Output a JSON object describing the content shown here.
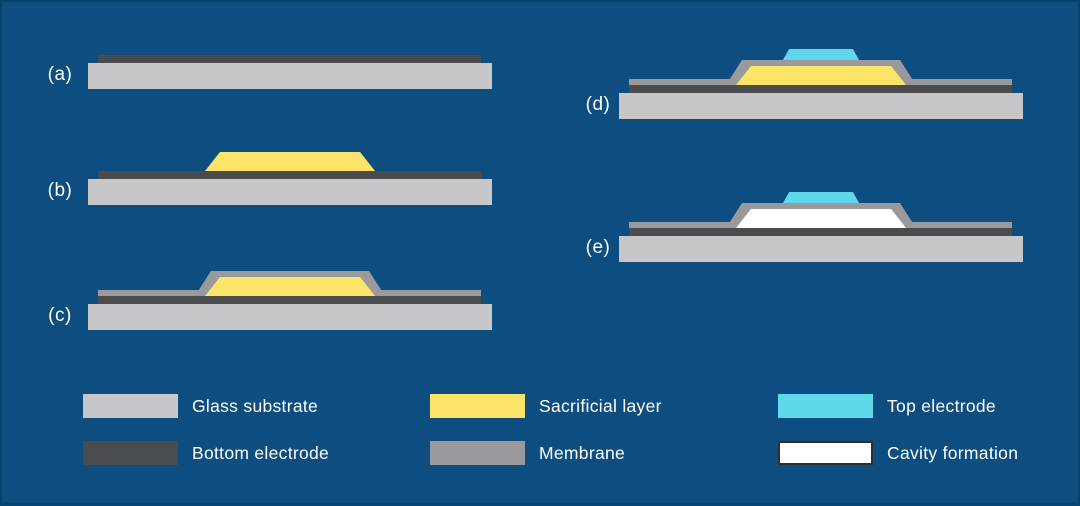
{
  "figure": {
    "description": "Microfabrication process flow diagram with five cross-section steps (a)-(e) and a color legend"
  },
  "colors": {
    "background": "#0D4D80",
    "edge": "#0A4470",
    "text": "#FFFFFF",
    "glass_substrate": "#C7C7C9",
    "bottom_electrode": "#4A4B4D",
    "sacrificial_layer": "#FCE469",
    "membrane": "#9A9A9C",
    "top_electrode": "#5FD8EC",
    "cavity": "#FFFFFF",
    "cavity_border": "#2E2E30"
  },
  "panels": [
    {
      "id": "a",
      "label": "(a)",
      "layers": [
        "glass_substrate",
        "bottom_electrode"
      ]
    },
    {
      "id": "b",
      "label": "(b)",
      "layers": [
        "glass_substrate",
        "bottom_electrode",
        "sacrificial_layer"
      ]
    },
    {
      "id": "c",
      "label": "(c)",
      "layers": [
        "glass_substrate",
        "bottom_electrode",
        "membrane_strip",
        "membrane_shell",
        "sacrificial_layer"
      ]
    },
    {
      "id": "d",
      "label": "(d)",
      "layers": [
        "glass_substrate",
        "bottom_electrode",
        "membrane_strip",
        "membrane_shell",
        "sacrificial_layer",
        "top_electrode"
      ]
    },
    {
      "id": "e",
      "label": "(e)",
      "layers": [
        "glass_substrate",
        "bottom_electrode",
        "membrane_strip",
        "membrane_shell",
        "cavity",
        "top_electrode"
      ]
    }
  ],
  "legend": {
    "items": [
      {
        "label": "Glass substrate",
        "color_key": "glass_substrate"
      },
      {
        "label": "Bottom electrode",
        "color_key": "bottom_electrode"
      },
      {
        "label": "Sacrificial layer",
        "color_key": "sacrificial_layer"
      },
      {
        "label": "Membrane",
        "color_key": "membrane"
      },
      {
        "label": "Top electrode",
        "color_key": "top_electrode"
      },
      {
        "label": "Cavity formation",
        "color_key": "cavity"
      }
    ]
  }
}
